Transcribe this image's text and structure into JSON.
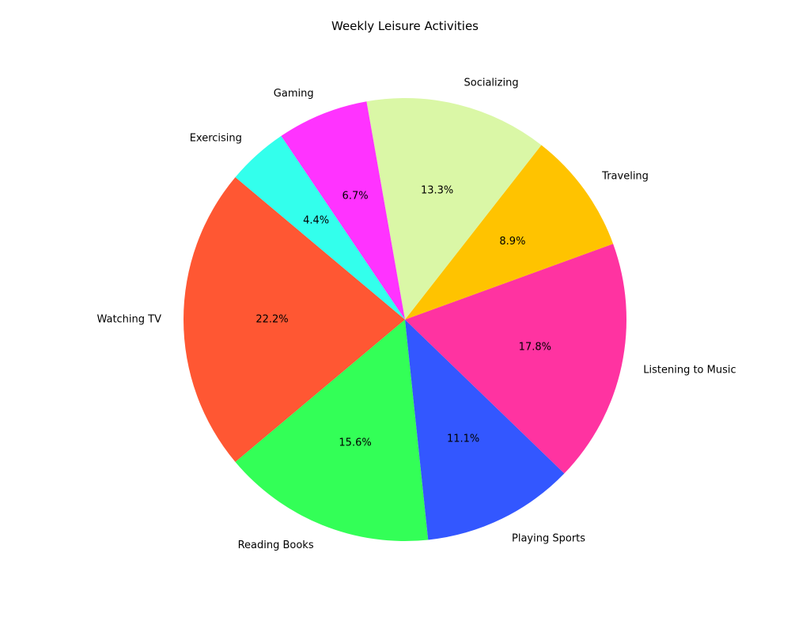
{
  "chart_data": {
    "type": "pie",
    "title": "Weekly Leisure Activities",
    "categories": [
      "Watching TV",
      "Reading Books",
      "Playing Sports",
      "Listening to Music",
      "Traveling",
      "Socializing",
      "Gaming",
      "Exercising"
    ],
    "values": [
      10,
      7,
      5,
      8,
      4,
      6,
      3,
      2
    ],
    "percent_labels": [
      "22.2%",
      "15.6%",
      "11.1%",
      "17.8%",
      "8.9%",
      "13.3%",
      "6.7%",
      "4.4%"
    ],
    "colors": [
      "#FF5733",
      "#33FF57",
      "#3357FF",
      "#FF33A1",
      "#FFC300",
      "#DAF7A6",
      "#FF33FF",
      "#33FFEC"
    ],
    "start_angle_deg": 140,
    "direction": "counterclockwise",
    "legend": "none"
  }
}
